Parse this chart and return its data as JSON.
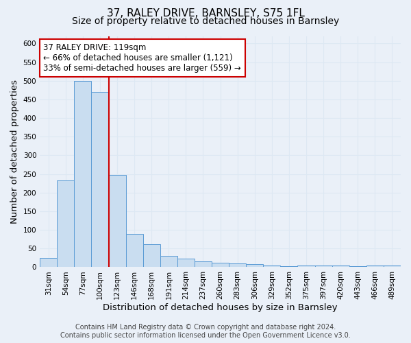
{
  "title_line1": "37, RALEY DRIVE, BARNSLEY, S75 1FL",
  "title_line2": "Size of property relative to detached houses in Barnsley",
  "xlabel": "Distribution of detached houses by size in Barnsley",
  "ylabel": "Number of detached properties",
  "categories": [
    "31sqm",
    "54sqm",
    "77sqm",
    "100sqm",
    "123sqm",
    "146sqm",
    "168sqm",
    "191sqm",
    "214sqm",
    "237sqm",
    "260sqm",
    "283sqm",
    "306sqm",
    "329sqm",
    "352sqm",
    "375sqm",
    "397sqm",
    "420sqm",
    "443sqm",
    "466sqm",
    "489sqm"
  ],
  "values": [
    25,
    232,
    500,
    470,
    248,
    90,
    62,
    30,
    23,
    15,
    12,
    10,
    8,
    4,
    3,
    4,
    5,
    4,
    2,
    5,
    5
  ],
  "bar_color": "#c9ddf0",
  "bar_edge_color": "#5b9bd5",
  "red_line_index": 4,
  "annotation_line1": "37 RALEY DRIVE: 119sqm",
  "annotation_line2": "← 66% of detached houses are smaller (1,121)",
  "annotation_line3": "33% of semi-detached houses are larger (559) →",
  "annotation_box_facecolor": "#ffffff",
  "annotation_box_edgecolor": "#cc0000",
  "red_line_color": "#cc0000",
  "ylim": [
    0,
    620
  ],
  "yticks": [
    0,
    50,
    100,
    150,
    200,
    250,
    300,
    350,
    400,
    450,
    500,
    550,
    600
  ],
  "footer_line1": "Contains HM Land Registry data © Crown copyright and database right 2024.",
  "footer_line2": "Contains public sector information licensed under the Open Government Licence v3.0.",
  "bg_color": "#eaf0f8",
  "grid_color": "#dde8f3",
  "title1_fontsize": 11,
  "title2_fontsize": 10,
  "axis_label_fontsize": 9.5,
  "tick_fontsize": 7.5,
  "annotation_fontsize": 8.5,
  "footer_fontsize": 7
}
